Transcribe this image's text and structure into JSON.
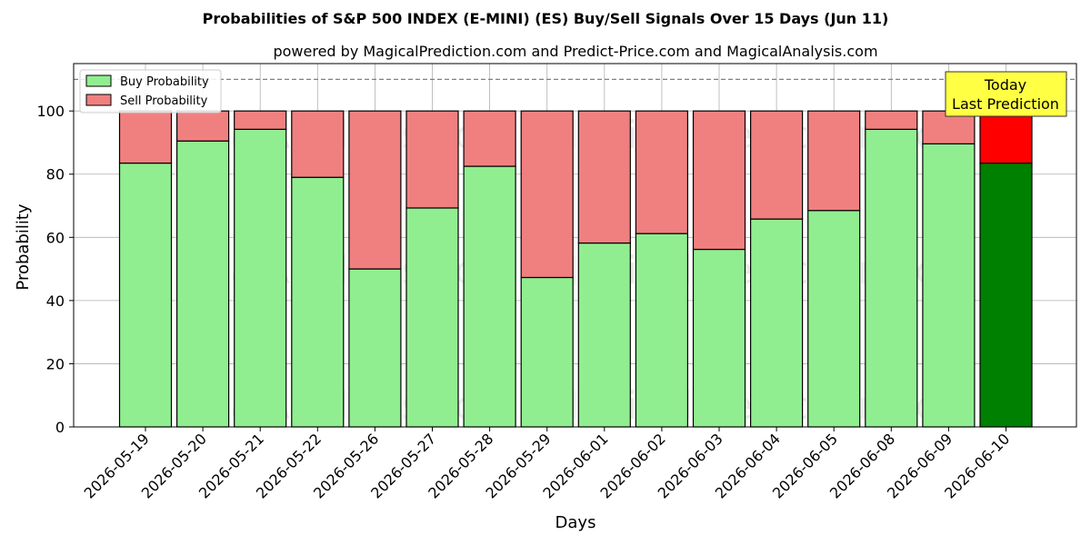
{
  "chart_data": {
    "type": "bar",
    "stacked": true,
    "title": "Probabilities of S&P 500 INDEX (E-MINI) (ES) Buy/Sell Signals Over 15 Days (Jun 11)",
    "subtitle": "powered by MagicalPrediction.com and Predict-Price.com and MagicalAnalysis.com",
    "xlabel": "Days",
    "ylabel": "Probability",
    "ylim": [
      0,
      115
    ],
    "yticks": [
      0,
      20,
      40,
      60,
      80,
      100
    ],
    "grid": true,
    "legend_position": "top-left",
    "reference_line": 110,
    "categories": [
      "2026-05-19",
      "2026-05-20",
      "2026-05-21",
      "2026-05-22",
      "2026-05-26",
      "2026-05-27",
      "2026-05-28",
      "2026-05-29",
      "2026-06-01",
      "2026-06-02",
      "2026-06-03",
      "2026-06-04",
      "2026-06-05",
      "2026-06-08",
      "2026-06-09",
      "2026-06-10"
    ],
    "series": [
      {
        "name": "Buy Probability",
        "values": [
          83.5,
          90.5,
          94.2,
          79,
          50,
          69.3,
          82.5,
          47.3,
          58.2,
          61.2,
          56.2,
          65.8,
          68.5,
          94.2,
          89.6,
          83.5
        ]
      },
      {
        "name": "Sell Probability",
        "values": [
          16.5,
          9.5,
          5.8,
          21,
          50,
          30.7,
          17.5,
          52.7,
          41.8,
          38.8,
          43.8,
          34.2,
          31.5,
          5.8,
          10.4,
          16.5
        ]
      }
    ],
    "annotation": {
      "line1": "Today",
      "line2": "Last Prediction"
    },
    "colors": {
      "buy": "#90ee90",
      "sell": "#f08080",
      "buy_highlight": "#008000",
      "sell_highlight": "#ff0000",
      "annotation_bg": "#ffff44",
      "grid": "#b0b0b0"
    },
    "watermarks": [
      "MagicalAnalysis.com",
      "MagicalPrediction.com"
    ]
  }
}
